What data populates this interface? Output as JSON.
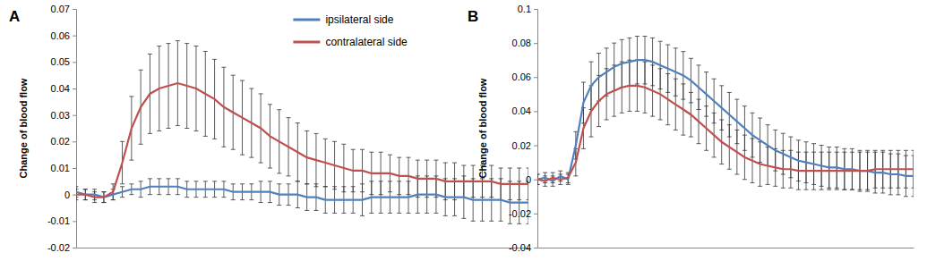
{
  "chart_data": [
    {
      "type": "line",
      "title": "A",
      "y_label": "Change of blood flow",
      "tick_labels": "y",
      "legend": "top-right",
      "x": [
        0,
        1,
        2,
        3,
        4,
        5,
        6,
        7,
        8,
        9,
        10,
        11,
        12,
        13,
        14,
        15,
        16,
        17,
        18,
        19,
        20,
        21,
        22,
        23,
        24,
        25,
        26,
        27,
        28,
        29,
        30,
        31,
        32,
        33,
        34,
        35,
        36,
        37,
        38,
        39,
        40,
        41,
        42,
        43,
        44,
        45,
        46,
        47,
        48,
        49
      ],
      "xlim": [
        0,
        49
      ],
      "ylim": [
        -0.02,
        0.07
      ],
      "yticks": [
        -0.02,
        -0.01,
        0,
        0.01,
        0.02,
        0.03,
        0.04,
        0.05,
        0.06,
        0.07
      ],
      "series": [
        {
          "name": "ipsilateral side",
          "color": "#4f81bd",
          "values": [
            0.001,
            0,
            0,
            -0.001,
            0,
            0.001,
            0.002,
            0.002,
            0.003,
            0.003,
            0.003,
            0.003,
            0.002,
            0.002,
            0.002,
            0.002,
            0.002,
            0.001,
            0.001,
            0.001,
            0.001,
            0.001,
            0,
            0,
            0,
            -0.001,
            -0.001,
            -0.002,
            -0.002,
            -0.002,
            -0.002,
            -0.002,
            -0.001,
            -0.001,
            -0.001,
            -0.001,
            -0.001,
            0,
            0,
            0,
            -0.001,
            -0.001,
            -0.001,
            -0.002,
            -0.002,
            -0.002,
            -0.002,
            -0.003,
            -0.003,
            -0.003
          ],
          "errors": [
            0.002,
            0.002,
            0.002,
            0.002,
            0.002,
            0.002,
            0.002,
            0.003,
            0.003,
            0.003,
            0.003,
            0.003,
            0.003,
            0.003,
            0.003,
            0.003,
            0.003,
            0.003,
            0.003,
            0.003,
            0.004,
            0.004,
            0.004,
            0.004,
            0.005,
            0.005,
            0.005,
            0.005,
            0.005,
            0.005,
            0.005,
            0.006,
            0.006,
            0.006,
            0.006,
            0.006,
            0.006,
            0.007,
            0.007,
            0.007,
            0.007,
            0.007,
            0.008,
            0.008,
            0.008,
            0.008,
            0.008,
            0.008,
            0.008,
            0.008
          ]
        },
        {
          "name": "contralateral side",
          "color": "#c0504d",
          "values": [
            0,
            0,
            -0.001,
            -0.001,
            0.001,
            0.012,
            0.025,
            0.033,
            0.038,
            0.04,
            0.041,
            0.042,
            0.041,
            0.04,
            0.038,
            0.036,
            0.033,
            0.031,
            0.029,
            0.027,
            0.025,
            0.022,
            0.02,
            0.018,
            0.016,
            0.014,
            0.013,
            0.012,
            0.011,
            0.01,
            0.009,
            0.009,
            0.008,
            0.008,
            0.008,
            0.007,
            0.007,
            0.006,
            0.006,
            0.006,
            0.005,
            0.005,
            0.005,
            0.005,
            0.005,
            0.005,
            0.004,
            0.004,
            0.004,
            0.004
          ],
          "errors": [
            0.002,
            0.002,
            0.002,
            0.002,
            0.003,
            0.008,
            0.012,
            0.014,
            0.015,
            0.016,
            0.016,
            0.016,
            0.016,
            0.016,
            0.016,
            0.015,
            0.015,
            0.014,
            0.014,
            0.013,
            0.013,
            0.012,
            0.012,
            0.011,
            0.011,
            0.01,
            0.01,
            0.009,
            0.009,
            0.009,
            0.008,
            0.008,
            0.008,
            0.008,
            0.007,
            0.007,
            0.007,
            0.007,
            0.007,
            0.007,
            0.007,
            0.007,
            0.006,
            0.006,
            0.006,
            0.006,
            0.006,
            0.006,
            0.006,
            0.006
          ]
        }
      ]
    },
    {
      "type": "line",
      "title": "B",
      "y_label": "Change of blood flow",
      "tick_labels": "y",
      "x": [
        0,
        1,
        2,
        3,
        4,
        5,
        6,
        7,
        8,
        9,
        10,
        11,
        12,
        13,
        14,
        15,
        16,
        17,
        18,
        19,
        20,
        21,
        22,
        23,
        24,
        25,
        26,
        27,
        28,
        29,
        30,
        31,
        32,
        33,
        34,
        35,
        36,
        37,
        38,
        39,
        40,
        41,
        42,
        43,
        44,
        45,
        46,
        47,
        48,
        49
      ],
      "xlim": [
        0,
        49
      ],
      "ylim": [
        -0.04,
        0.1
      ],
      "yticks": [
        -0.04,
        -0.02,
        0,
        0.02,
        0.04,
        0.06,
        0.08,
        0.1
      ],
      "series": [
        {
          "color": "#4f81bd",
          "values": [
            0,
            0.001,
            -0.001,
            0.002,
            0,
            0.02,
            0.045,
            0.055,
            0.06,
            0.063,
            0.066,
            0.068,
            0.069,
            0.07,
            0.07,
            0.069,
            0.067,
            0.065,
            0.063,
            0.061,
            0.058,
            0.054,
            0.05,
            0.046,
            0.042,
            0.038,
            0.034,
            0.03,
            0.026,
            0.023,
            0.02,
            0.017,
            0.015,
            0.013,
            0.011,
            0.01,
            0.009,
            0.008,
            0.007,
            0.007,
            0.006,
            0.006,
            0.005,
            0.005,
            0.004,
            0.004,
            0.003,
            0.003,
            0.002,
            0.002
          ],
          "errors": [
            0.003,
            0.003,
            0.003,
            0.003,
            0.003,
            0.008,
            0.012,
            0.014,
            0.014,
            0.014,
            0.014,
            0.014,
            0.014,
            0.014,
            0.014,
            0.014,
            0.014,
            0.014,
            0.014,
            0.014,
            0.013,
            0.013,
            0.013,
            0.013,
            0.013,
            0.013,
            0.013,
            0.013,
            0.013,
            0.013,
            0.012,
            0.012,
            0.012,
            0.012,
            0.012,
            0.012,
            0.012,
            0.012,
            0.012,
            0.012,
            0.012,
            0.012,
            0.012,
            0.012,
            0.012,
            0.012,
            0.012,
            0.012,
            0.012,
            0.012
          ]
        },
        {
          "color": "#c0504d",
          "values": [
            0,
            -0.001,
            0.001,
            0,
            0.001,
            0.01,
            0.03,
            0.04,
            0.046,
            0.05,
            0.052,
            0.054,
            0.055,
            0.055,
            0.054,
            0.052,
            0.05,
            0.047,
            0.044,
            0.041,
            0.038,
            0.034,
            0.03,
            0.026,
            0.022,
            0.019,
            0.016,
            0.013,
            0.011,
            0.009,
            0.008,
            0.007,
            0.006,
            0.006,
            0.005,
            0.005,
            0.005,
            0.005,
            0.005,
            0.005,
            0.005,
            0.005,
            0.005,
            0.005,
            0.006,
            0.006,
            0.006,
            0.006,
            0.006,
            0.006
          ],
          "errors": [
            0.003,
            0.003,
            0.003,
            0.003,
            0.003,
            0.008,
            0.012,
            0.015,
            0.015,
            0.015,
            0.015,
            0.015,
            0.015,
            0.015,
            0.015,
            0.015,
            0.015,
            0.015,
            0.015,
            0.015,
            0.013,
            0.013,
            0.013,
            0.013,
            0.013,
            0.013,
            0.013,
            0.013,
            0.013,
            0.013,
            0.011,
            0.011,
            0.011,
            0.011,
            0.011,
            0.011,
            0.011,
            0.011,
            0.011,
            0.011,
            0.011,
            0.011,
            0.011,
            0.011,
            0.011,
            0.011,
            0.011,
            0.011,
            0.011,
            0.011
          ]
        }
      ]
    }
  ]
}
